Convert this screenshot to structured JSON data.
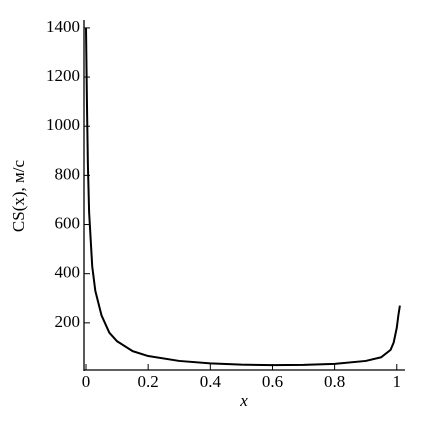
{
  "chart_data": {
    "type": "line",
    "x_label": "x",
    "y_label": "CS(x), м/с",
    "x": [
      0,
      0.003,
      0.006,
      0.01,
      0.02,
      0.03,
      0.05,
      0.075,
      0.1,
      0.15,
      0.2,
      0.3,
      0.4,
      0.5,
      0.6,
      0.7,
      0.8,
      0.9,
      0.95,
      0.98,
      0.99,
      1.0,
      1.005,
      1.01
    ],
    "series": [
      {
        "color": "#000000",
        "values": [
          1400,
          1100,
          850,
          650,
          430,
          330,
          230,
          160,
          125,
          85,
          65,
          45,
          35,
          30,
          28,
          29,
          33,
          45,
          60,
          90,
          120,
          180,
          230,
          270
        ]
      }
    ],
    "xlim": [
      0,
      1.02
    ],
    "xticks": [
      0,
      0.2,
      0.4,
      0.6,
      0.8,
      1
    ],
    "ylim": [
      0,
      1420
    ],
    "yticks": [
      200,
      400,
      600,
      800,
      1000,
      1200,
      1400
    ],
    "grid": false
  }
}
